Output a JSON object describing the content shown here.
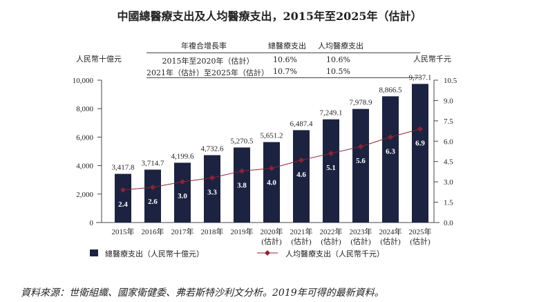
{
  "title": "中國總醫療支出及人均醫療支出，2015年至2025年（估計）",
  "cagr_table": {
    "headers": [
      "年複合增長率",
      "總醫療支出",
      "人均醫療支出"
    ],
    "rows": [
      [
        "2015年至2020年（估計）",
        "10.6%",
        "10.6%"
      ],
      [
        "2021年（估計）至2025年（估計）",
        "10.7%",
        "10.5%"
      ]
    ]
  },
  "footnote": "資料來源：世衛組織、國家衛健委、弗若斯特沙利文分析。2019年可得的最新資料。",
  "chart_data": {
    "type": "bar+line",
    "categories": [
      "2015年",
      "2016年",
      "2017年",
      "2018年",
      "2019年",
      "2020年\n(估計)",
      "2021年\n(估計)",
      "2022年\n(估計)",
      "2023年\n(估計)",
      "2024年\n(估計)",
      "2025年\n(估計)"
    ],
    "ylabel_left": "人民幣十億元",
    "ylabel_right": "人民幣千元",
    "ylim_left": [
      0,
      10000
    ],
    "ylim_right": [
      0,
      10.5
    ],
    "yticks_left": [
      "0",
      "2,000",
      "4,000",
      "6,000",
      "8,000",
      "10,000"
    ],
    "yticks_right": [
      "0.0",
      "1.5",
      "3.0",
      "4.5",
      "6.0",
      "7.5",
      "9.0",
      "10.5"
    ],
    "grid": false,
    "legend_position": "bottom",
    "series": [
      {
        "name": "總醫療支出（人民幣十億元）",
        "type": "bar",
        "axis": "left",
        "color": "#1c2340",
        "values": [
          3417.8,
          3714.7,
          4199.6,
          4732.6,
          5270.5,
          5651.2,
          6487.4,
          7249.1,
          7978.9,
          8866.5,
          9737.1
        ],
        "labels": [
          "3,417.8",
          "3,714.7",
          "4,199.6",
          "4,732.6",
          "5,270.5",
          "5,651.2",
          "6,487.4",
          "7,249.1",
          "7,978.9",
          "8,866.5",
          "9,737.1"
        ]
      },
      {
        "name": "人均醫療支出（人民幣千元）",
        "type": "line",
        "axis": "right",
        "color": "#8b2332",
        "values": [
          2.4,
          2.6,
          3.0,
          3.3,
          3.8,
          4.0,
          4.6,
          5.1,
          5.6,
          6.3,
          6.9
        ],
        "labels": [
          "2.4",
          "2.6",
          "3.0",
          "3.3",
          "3.8",
          "4.0",
          "4.6",
          "5.1",
          "5.6",
          "6.3",
          "6.9"
        ]
      }
    ]
  }
}
